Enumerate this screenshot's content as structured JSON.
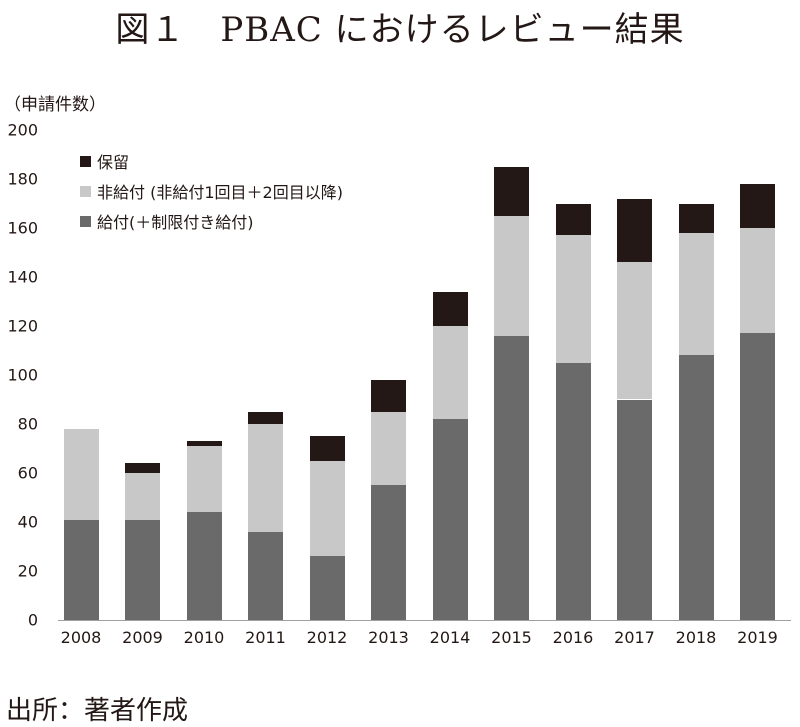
{
  "title": "図１　PBAC におけるレビュー結果",
  "source": "出所：著者作成",
  "chart_data": {
    "type": "bar",
    "stacked": true,
    "title": "図１　PBAC におけるレビュー結果",
    "xlabel": "",
    "ylabel": "（申請件数）",
    "ylim": [
      0,
      200
    ],
    "yticks": [
      0,
      20,
      40,
      60,
      80,
      100,
      120,
      140,
      160,
      180,
      200
    ],
    "grid": false,
    "legend_position": "upper-left",
    "categories": [
      "2008",
      "2009",
      "2010",
      "2011",
      "2012",
      "2013",
      "2014",
      "2015",
      "2016",
      "2017",
      "2018",
      "2019"
    ],
    "series": [
      {
        "name": "給付(＋制限付き給付)",
        "color": "#6a6a6a",
        "values": [
          41,
          41,
          44,
          36,
          26,
          55,
          82,
          116,
          105,
          90,
          108,
          117
        ]
      },
      {
        "name": "非給付 (非給付1回目＋2回目以降)",
        "color": "#c8c8c8",
        "values": [
          37,
          19,
          27,
          44,
          39,
          30,
          38,
          49,
          52,
          56,
          50,
          43
        ]
      },
      {
        "name": "保留",
        "color": "#231815",
        "values": [
          0,
          4,
          2,
          5,
          10,
          13,
          14,
          20,
          13,
          26,
          12,
          18
        ]
      }
    ]
  }
}
